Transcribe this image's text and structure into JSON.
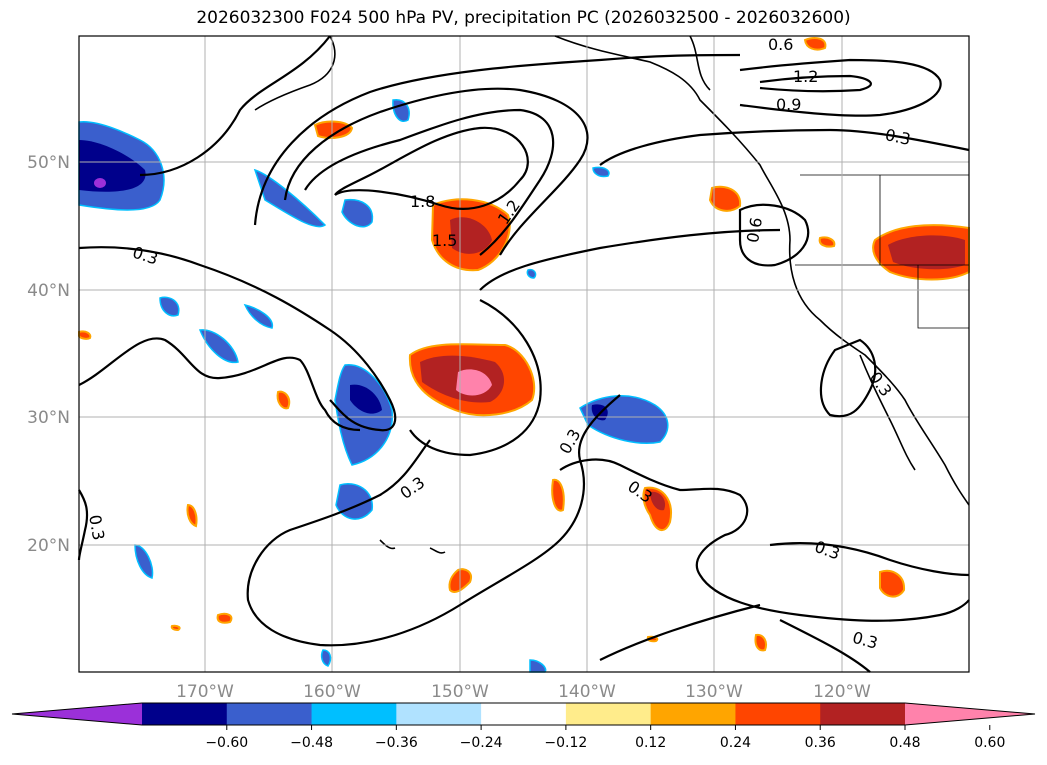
{
  "title": "2026032300 F024 500 hPa PV, precipitation PC (2026032500 - 2026032600)",
  "map": {
    "lon_labels": [
      "170°W",
      "160°W",
      "150°W",
      "140°W",
      "130°W",
      "120°W"
    ],
    "lat_labels": [
      "50°N",
      "40°N",
      "30°N",
      "20°N"
    ],
    "pv_contour_labels": [
      "1.8",
      "1.5",
      "1.2",
      "0.3",
      "0.6",
      "1.2",
      "0.9",
      "0.3",
      "0.6",
      "0.3",
      "0.3",
      "0.3",
      "0.3",
      "0.3",
      "0.3",
      "0.3",
      "0.3"
    ]
  },
  "colorbar": {
    "tick_labels": [
      "−0.60",
      "−0.48",
      "−0.36",
      "−0.24",
      "−0.12",
      "0.12",
      "0.24",
      "0.36",
      "0.48",
      "0.60"
    ],
    "colors": [
      "#9b30d9",
      "#00008b",
      "#3a5fcd",
      "#00bfff",
      "#b0e2ff",
      "#ffffff",
      "#ffec8b",
      "#ffa500",
      "#ff4500",
      "#b22222",
      "#ff82ab"
    ]
  }
}
